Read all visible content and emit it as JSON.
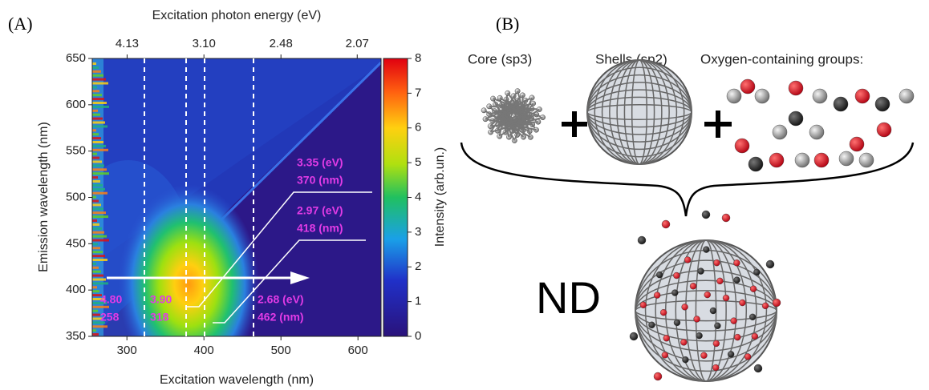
{
  "panel_a": {
    "label": "(A)",
    "top_axis_title": "Excitation photon energy (eV)",
    "top_ticks": [
      4.13,
      {
        "value": 3.1,
        "label": "3.10"
      },
      2.48,
      2.07
    ],
    "y_axis_title": "Emission wavelength (nm)",
    "ylim": [
      350,
      650
    ],
    "yticks": [
      350,
      400,
      450,
      500,
      550,
      600,
      650
    ],
    "x_axis_title": "Excitation wavelength (nm)",
    "xlim": [
      255,
      630
    ],
    "xticks": [
      300,
      400,
      500,
      600
    ],
    "colorbar_title": "Intensity (arb.un.)",
    "colorbar_lim": [
      0,
      8
    ],
    "colorbar_ticks": [
      0,
      1,
      2,
      3,
      4,
      5,
      6,
      7,
      8
    ],
    "annotations": [
      {
        "line1": "4.80",
        "line2": "258"
      },
      {
        "line1": "3.90",
        "line2": "318"
      },
      {
        "line1": "2.68 (eV)",
        "line2": "462  (nm)"
      },
      {
        "line1": "3.35 (eV)",
        "line2": "370 (nm)"
      },
      {
        "line1": "2.97 (eV)",
        "line2": "418  (nm)"
      }
    ]
  },
  "panel_b": {
    "label": "(B)",
    "labels": [
      "Core (sp3)",
      "Shells (sp2)",
      "Oxygen-containing groups:"
    ],
    "center": "ND"
  }
}
